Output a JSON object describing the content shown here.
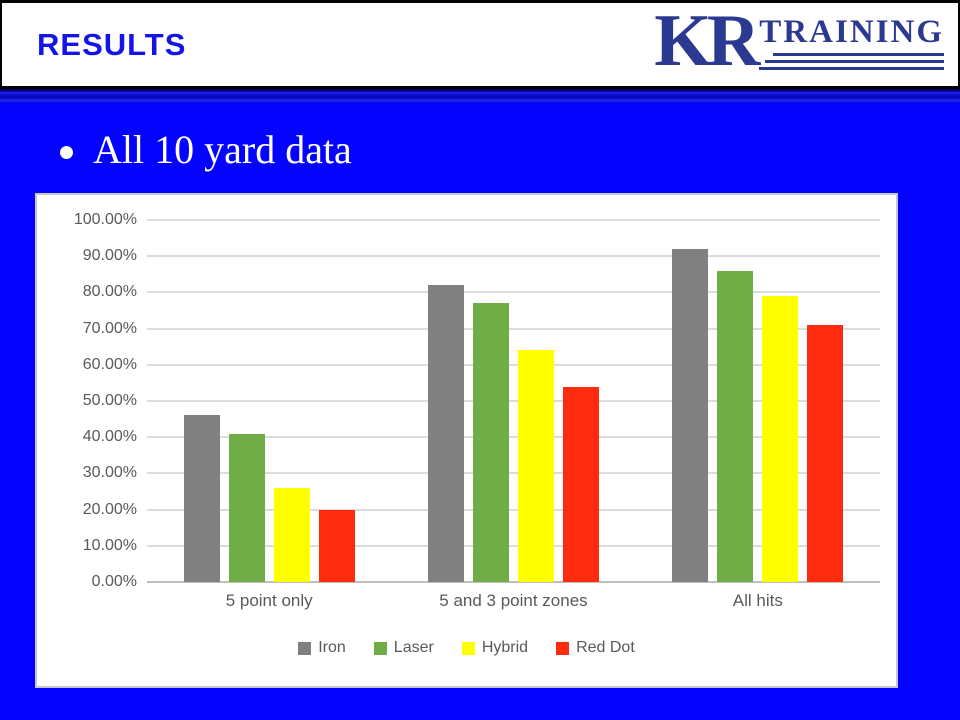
{
  "header": {
    "title": "RESULTS",
    "logo": {
      "kr": "KR",
      "training": "TRAINING"
    }
  },
  "bullet": {
    "text": "All 10 yard data"
  },
  "chart_data": {
    "type": "bar",
    "title": "",
    "categories": [
      "5 point only",
      "5 and 3 point zones",
      "All hits"
    ],
    "series": [
      {
        "name": "Iron",
        "color": "#808080",
        "values": [
          46,
          82,
          92
        ]
      },
      {
        "name": "Laser",
        "color": "#70AD47",
        "values": [
          41,
          77,
          86
        ]
      },
      {
        "name": "Hybrid",
        "color": "#FFFF00",
        "values": [
          26,
          64,
          79
        ]
      },
      {
        "name": "Red Dot",
        "color": "#FF2B0F",
        "values": [
          20,
          54,
          71
        ]
      }
    ],
    "value_format": "percent",
    "ylim": [
      0,
      100
    ],
    "yticks": [
      "100.00%",
      "90.00%",
      "80.00%",
      "70.00%",
      "60.00%",
      "50.00%",
      "40.00%",
      "30.00%",
      "20.00%",
      "10.00%",
      "0.00%"
    ],
    "grid": true,
    "legend_position": "bottom"
  },
  "colors": {
    "slide_background": "#0303FE",
    "title_text": "#1414E8",
    "logo_navy": "#2B3990",
    "axis_text": "#595959"
  }
}
